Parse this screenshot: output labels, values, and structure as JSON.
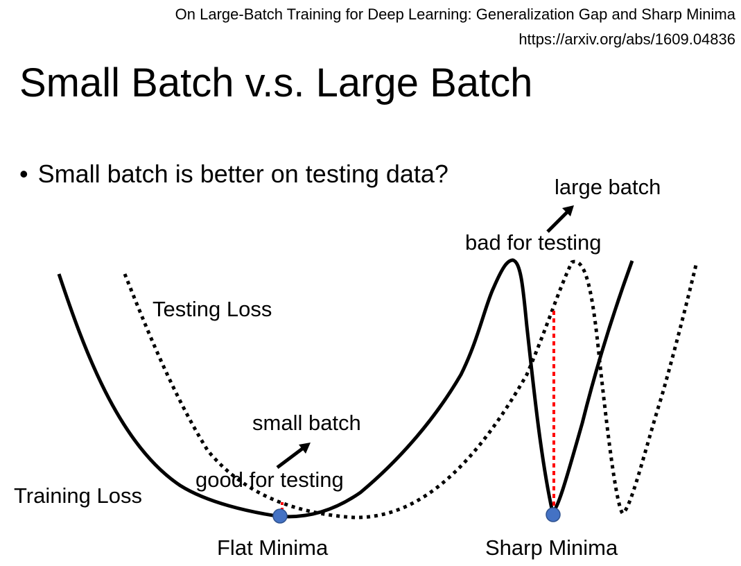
{
  "header": {
    "paper_title": "On Large-Batch Training for Deep Learning: Generalization Gap and Sharp Minima",
    "paper_url": "https://arxiv.org/abs/1609.04836"
  },
  "slide": {
    "title": "Small Batch v.s. Large Batch",
    "bullet": "Small batch is better on testing data?"
  },
  "diagram": {
    "testing_loss_label": "Testing Loss",
    "training_loss_label": "Training Loss",
    "flat_minima_label": "Flat Minima",
    "sharp_minima_label": "Sharp Minima",
    "small_batch_label": "small batch",
    "good_for_testing_label": "good for testing",
    "large_batch_label": "large batch",
    "bad_for_testing_label": "bad for testing",
    "colors": {
      "curve": "#000000",
      "minima_point": "#4472C4",
      "gap_line": "#FF0000"
    }
  }
}
